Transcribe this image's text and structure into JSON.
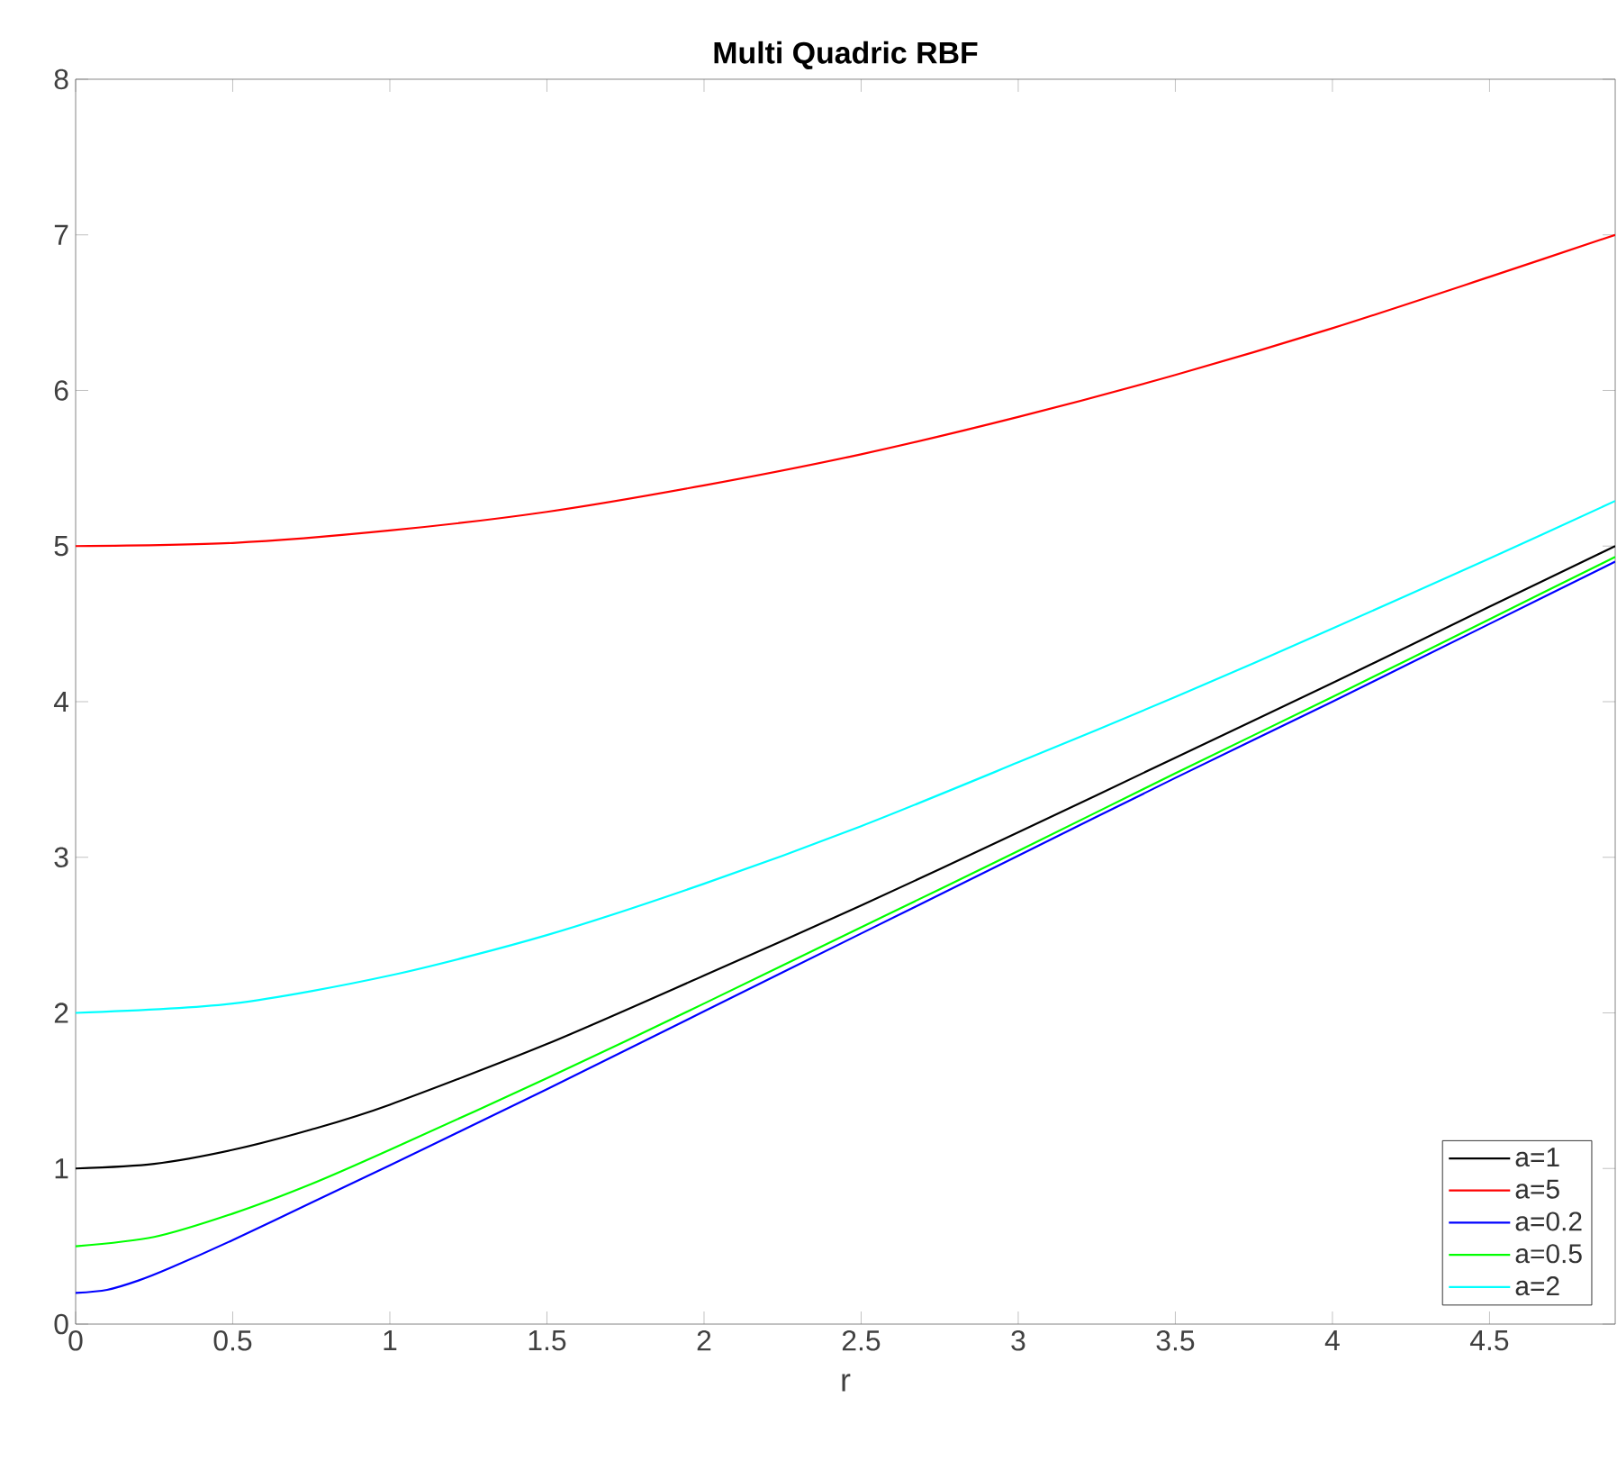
{
  "chart_data": {
    "type": "line",
    "title": "Multi Quadric RBF",
    "xlabel": "r",
    "xlim": [
      0,
      4.9
    ],
    "ylim": [
      0,
      8
    ],
    "xticks": [
      0,
      0.5,
      1,
      1.5,
      2,
      2.5,
      3,
      3.5,
      4,
      4.5
    ],
    "yticks": [
      0,
      1,
      2,
      3,
      4,
      5,
      6,
      7,
      8
    ],
    "grid": false,
    "legend": "bottom right",
    "marker": "none",
    "line_style": "solid",
    "series": [
      {
        "name": "a=1",
        "color": "#000000",
        "x": [
          0,
          0.25,
          0.5,
          0.75,
          1,
          1.5,
          2,
          2.5,
          3,
          3.5,
          4,
          4.5,
          4.9
        ],
        "values": [
          1,
          1.03,
          1.12,
          1.25,
          1.41,
          1.8,
          2.24,
          2.69,
          3.16,
          3.64,
          4.12,
          4.61,
          5.0
        ]
      },
      {
        "name": "a=5",
        "color": "#ff0000",
        "x": [
          0,
          0.5,
          1,
          1.5,
          2,
          2.5,
          3,
          3.5,
          4,
          4.5,
          4.9
        ],
        "values": [
          5,
          5.02,
          5.1,
          5.22,
          5.39,
          5.59,
          5.83,
          6.1,
          6.4,
          6.73,
          7.0
        ]
      },
      {
        "name": "a=0.2",
        "color": "#0000ff",
        "x": [
          0,
          0.1,
          0.2,
          0.3,
          0.5,
          0.75,
          1,
          1.5,
          2,
          2.5,
          3,
          3.5,
          4,
          4.5,
          4.9
        ],
        "values": [
          0.2,
          0.22,
          0.28,
          0.36,
          0.54,
          0.78,
          1.02,
          1.51,
          2.01,
          2.51,
          3.01,
          3.51,
          4.0,
          4.5,
          4.9
        ]
      },
      {
        "name": "a=0.5",
        "color": "#00ff00",
        "x": [
          0,
          0.25,
          0.5,
          0.75,
          1,
          1.5,
          2,
          2.5,
          3,
          3.5,
          4,
          4.5,
          4.9
        ],
        "values": [
          0.5,
          0.56,
          0.71,
          0.9,
          1.12,
          1.58,
          2.06,
          2.55,
          3.04,
          3.54,
          4.03,
          4.53,
          4.93
        ]
      },
      {
        "name": "a=2",
        "color": "#00ffff",
        "x": [
          0,
          0.5,
          1,
          1.5,
          2,
          2.5,
          3,
          3.5,
          4,
          4.5,
          4.9
        ],
        "values": [
          2,
          2.06,
          2.24,
          2.5,
          2.83,
          3.2,
          3.61,
          4.03,
          4.47,
          4.92,
          5.29
        ]
      }
    ]
  }
}
